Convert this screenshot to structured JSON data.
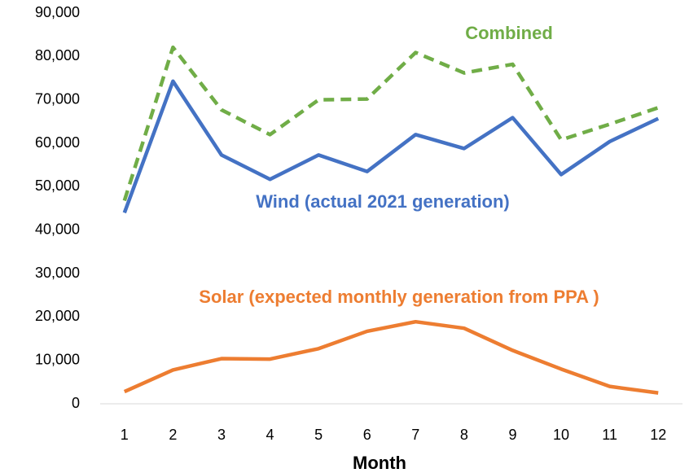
{
  "chart_data": {
    "type": "line",
    "x_label": "Month",
    "categories": [
      "1",
      "2",
      "3",
      "4",
      "5",
      "6",
      "7",
      "8",
      "9",
      "10",
      "11",
      "12"
    ],
    "series": [
      {
        "name": "Combined",
        "color": "#70ad47",
        "dashed": true,
        "values": [
          46800,
          82100,
          67700,
          62000,
          70000,
          70200,
          80900,
          76200,
          78200,
          60800,
          64400,
          68200
        ]
      },
      {
        "name": "Wind (actual 2021 generation)",
        "color": "#4472c4",
        "values": [
          44000,
          74300,
          57300,
          51700,
          57300,
          53500,
          62000,
          58800,
          65900,
          52800,
          60400,
          65700
        ]
      },
      {
        "name": "Solar (expected monthly generation from PPA )",
        "color": "#ed7d31",
        "values": [
          2800,
          7800,
          10400,
          10300,
          12700,
          16700,
          18900,
          17400,
          12300,
          8000,
          4000,
          2500
        ]
      }
    ],
    "ylim": [
      0,
      90000
    ],
    "yticks": [
      0,
      {
        "value": 10000,
        "label": "10,000"
      },
      {
        "value": 20000,
        "label": "20,000"
      },
      {
        "value": 30000,
        "label": "30,000"
      },
      {
        "value": 40000,
        "label": "40,000"
      },
      {
        "value": 50000,
        "label": "50,000"
      },
      {
        "value": 60000,
        "label": "60,000"
      },
      {
        "value": 70000,
        "label": "70,000"
      },
      {
        "value": 80000,
        "label": "80,000"
      },
      {
        "value": 90000,
        "label": "90,000"
      }
    ],
    "grid": false
  }
}
